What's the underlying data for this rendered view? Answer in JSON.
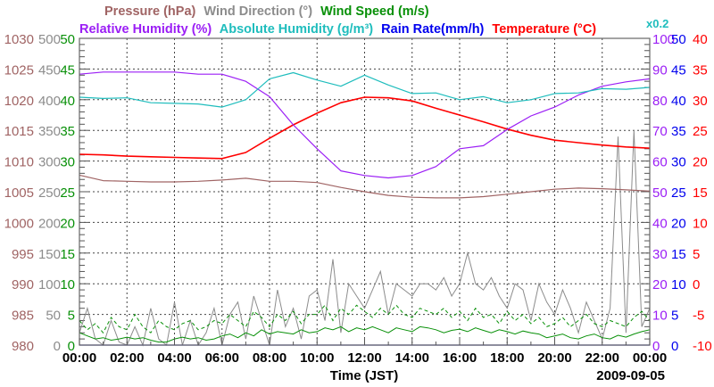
{
  "chart_data": {
    "type": "line",
    "title_line1": [
      {
        "label": "Pressure (hPa)",
        "color": "#a06464"
      },
      {
        "label": "Wind Direction (°)",
        "color": "#8c8c8c"
      },
      {
        "label": "Wind Speed (m/s)",
        "color": "#089008"
      }
    ],
    "title_line2": [
      {
        "label": "Relative Humidity (%)",
        "color": "#9b1ef5"
      },
      {
        "label": "Absolute Humidity (g/m³)",
        "color": "#1fbdbd"
      },
      {
        "label": "Rain Rate(mm/h)",
        "color": "#0000ee"
      },
      {
        "label": "Temperature (°C)",
        "color": "#ff0000"
      }
    ],
    "abs_humidity_scale_note": "x0.2",
    "xlabel": "Time (JST)",
    "date": "2009-09-05",
    "x_ticks": [
      "00:00",
      "02:00",
      "04:00",
      "06:00",
      "08:00",
      "10:00",
      "12:00",
      "14:00",
      "16:00",
      "18:00",
      "20:00",
      "22:00",
      "00:00"
    ],
    "xlim_hours": [
      0,
      24
    ],
    "grid": true,
    "axes": {
      "pressure": {
        "side": "left",
        "range": [
          980,
          1030
        ],
        "step": 5,
        "color": "#a06464"
      },
      "wind_direction": {
        "side": "left",
        "range": [
          0,
          500
        ],
        "step": 50,
        "color": "#8c8c8c"
      },
      "wind_speed": {
        "side": "left",
        "range": [
          0,
          50
        ],
        "step": 5,
        "color": "#089008"
      },
      "relative_humidity": {
        "side": "right",
        "range": [
          0,
          100
        ],
        "step": 10,
        "color": "#9b1ef5"
      },
      "rain_rate": {
        "side": "right",
        "range": [
          0,
          50
        ],
        "step": 5,
        "color": "#0000ee"
      },
      "temperature": {
        "side": "right",
        "range": [
          -10,
          40
        ],
        "step": 5,
        "color": "#ff0000"
      }
    },
    "hourly_x": [
      0,
      1,
      2,
      3,
      4,
      5,
      6,
      7,
      8,
      9,
      10,
      11,
      12,
      13,
      14,
      15,
      16,
      17,
      18,
      19,
      20,
      21,
      22,
      23,
      24
    ],
    "series": [
      {
        "name": "Temperature",
        "axis": "temperature",
        "color": "#ff0000",
        "values": [
          21.1,
          21.0,
          20.8,
          20.7,
          20.6,
          20.5,
          20.4,
          21.4,
          23.7,
          25.9,
          27.8,
          29.5,
          30.4,
          30.3,
          29.8,
          28.6,
          27.5,
          26.4,
          25.2,
          24.2,
          23.4,
          23.0,
          22.6,
          22.3,
          22.1
        ]
      },
      {
        "name": "Relative Humidity",
        "axis": "relative_humidity",
        "color": "#9b1ef5",
        "values": [
          88.3,
          89,
          89,
          89,
          89,
          88.3,
          88.3,
          86,
          81,
          71.8,
          64,
          56.8,
          55.3,
          54.5,
          55.3,
          58.2,
          64,
          65,
          70.3,
          74.7,
          77.6,
          81.5,
          84.4,
          85.8,
          86.8
        ]
      },
      {
        "name": "Absolute Humidity",
        "axis": "rain_rate",
        "color": "#1fbdbd",
        "values": [
          40.4,
          40.2,
          40.3,
          39.5,
          39.4,
          39.3,
          38.8,
          40,
          43.4,
          44.4,
          43.2,
          42.2,
          44,
          42.4,
          41,
          41.1,
          40,
          40.5,
          39.5,
          40,
          41,
          41.1,
          41.8,
          41.7,
          42
        ]
      },
      {
        "name": "Pressure",
        "axis": "pressure",
        "color": "#a06464",
        "values": [
          1007.7,
          1006.8,
          1006.7,
          1006.6,
          1006.6,
          1006.7,
          1006.9,
          1007.2,
          1006.7,
          1006.7,
          1006.5,
          1005.7,
          1005.0,
          1004.4,
          1004.1,
          1004.0,
          1004.0,
          1004.2,
          1004.6,
          1005.0,
          1005.4,
          1005.6,
          1005.5,
          1005.3,
          1005.1
        ]
      },
      {
        "name": "Rain Rate",
        "axis": "rain_rate",
        "color": "#3030cc",
        "values": [
          0,
          0,
          0,
          0,
          0,
          0,
          0,
          0,
          0,
          0,
          0,
          0,
          0,
          0,
          0,
          0,
          0,
          0,
          0,
          0,
          0,
          0,
          0,
          0,
          0
        ]
      }
    ],
    "noisy_x_step_minutes": 20,
    "noisy_series": [
      {
        "name": "Wind Direction",
        "axis": "wind_direction",
        "color": "#8c8c8c",
        "dashed": false,
        "values": [
          20,
          60,
          10,
          0,
          40,
          5,
          0,
          30,
          0,
          60,
          10,
          0,
          70,
          0,
          40,
          0,
          20,
          60,
          0,
          50,
          70,
          10,
          80,
          40,
          0,
          90,
          30,
          60,
          10,
          80,
          90,
          40,
          140,
          20,
          100,
          80,
          60,
          90,
          120,
          50,
          100,
          90,
          80,
          100,
          100,
          90,
          110,
          80,
          100,
          150,
          100,
          90,
          110,
          80,
          60,
          100,
          90,
          40,
          100,
          70,
          50,
          90,
          60,
          20,
          70,
          40,
          10,
          60,
          340,
          20,
          350,
          30,
          60
        ]
      },
      {
        "name": "Wind Speed (gust)",
        "axis": "wind_speed",
        "color": "#089008",
        "dashed": true,
        "values": [
          4,
          2.5,
          3.5,
          2,
          4.5,
          3,
          2.5,
          5,
          3,
          2,
          4,
          3,
          2.5,
          3.5,
          4,
          2.5,
          3,
          4,
          3.5,
          5,
          4,
          3,
          5.5,
          4.5,
          3,
          5,
          4,
          5.5,
          3.5,
          5,
          5,
          6.5,
          4,
          6,
          5,
          6.5,
          5.5,
          4.5,
          6,
          5,
          6.5,
          5,
          4.5,
          6,
          5.5,
          5,
          6,
          4.5,
          5.5,
          4,
          6,
          4.5,
          5,
          3.5,
          5.5,
          4,
          5,
          3.5,
          4.5,
          3,
          3.5,
          4.5,
          3,
          4,
          5,
          3.5,
          3,
          4,
          3.5,
          3,
          4.5,
          5.5,
          4
        ]
      },
      {
        "name": "Wind Speed (mean)",
        "axis": "wind_speed",
        "color": "#089008",
        "dashed": false,
        "values": [
          2,
          1.5,
          1,
          1.2,
          0.8,
          1,
          1.3,
          1,
          1.2,
          0.8,
          0.5,
          0.5,
          1,
          1.3,
          1,
          1.2,
          0.8,
          1,
          1.5,
          1.8,
          1.2,
          2,
          1.5,
          2.5,
          1.8,
          2.2,
          2,
          1.8,
          2.5,
          2,
          2.2,
          2.8,
          2.5,
          3,
          2.2,
          2.8,
          2.5,
          3,
          2.5,
          2,
          2.8,
          2.5,
          2.2,
          3,
          2.8,
          2.5,
          2,
          2.4,
          2.6,
          2.2,
          2.8,
          2.4,
          2,
          2.5,
          2.2,
          1.8,
          2.3,
          2,
          1.8,
          1.2,
          1.5,
          1.8,
          1.2,
          1,
          1.5,
          1.8,
          1.2,
          1,
          1.6,
          1.3,
          1.8,
          2.2,
          2.5
        ]
      }
    ]
  }
}
